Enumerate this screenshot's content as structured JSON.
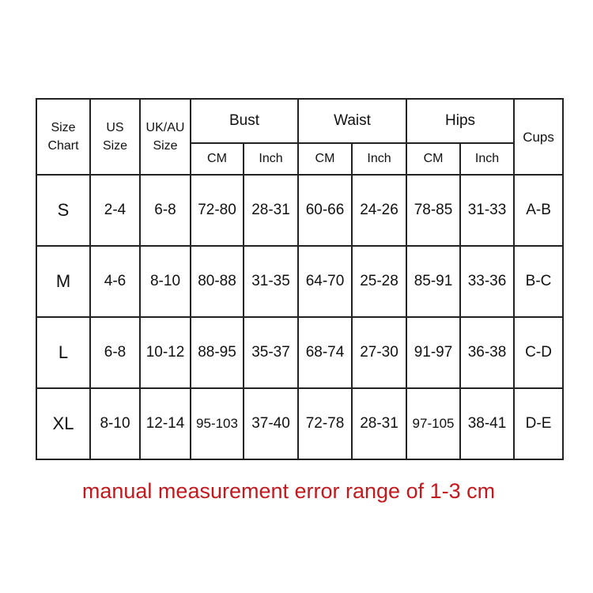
{
  "header": {
    "size_chart": "Size Chart",
    "us_size": "US Size",
    "uk_au_size": "UK/AU Size",
    "groups": [
      "Bust",
      "Waist",
      "Hips"
    ],
    "units": [
      "CM",
      "Inch",
      "CM",
      "Inch",
      "CM",
      "Inch"
    ],
    "cups": "Cups"
  },
  "rows": [
    [
      "S",
      "2-4",
      "6-8",
      "72-80",
      "28-31",
      "60-66",
      "24-26",
      "78-85",
      "31-33",
      "A-B"
    ],
    [
      "M",
      "4-6",
      "8-10",
      "80-88",
      "31-35",
      "64-70",
      "25-28",
      "85-91",
      "33-36",
      "B-C"
    ],
    [
      "L",
      "6-8",
      "10-12",
      "88-95",
      "35-37",
      "68-74",
      "27-30",
      "91-97",
      "36-38",
      "C-D"
    ],
    [
      "XL",
      "8-10",
      "12-14",
      "95-103",
      "37-40",
      "72-78",
      "28-31",
      "97-105",
      "38-41",
      "D-E"
    ]
  ],
  "note": "manual measurement error range of 1-3 cm",
  "colors": {
    "note": "#c0191e",
    "border": "#222222"
  }
}
